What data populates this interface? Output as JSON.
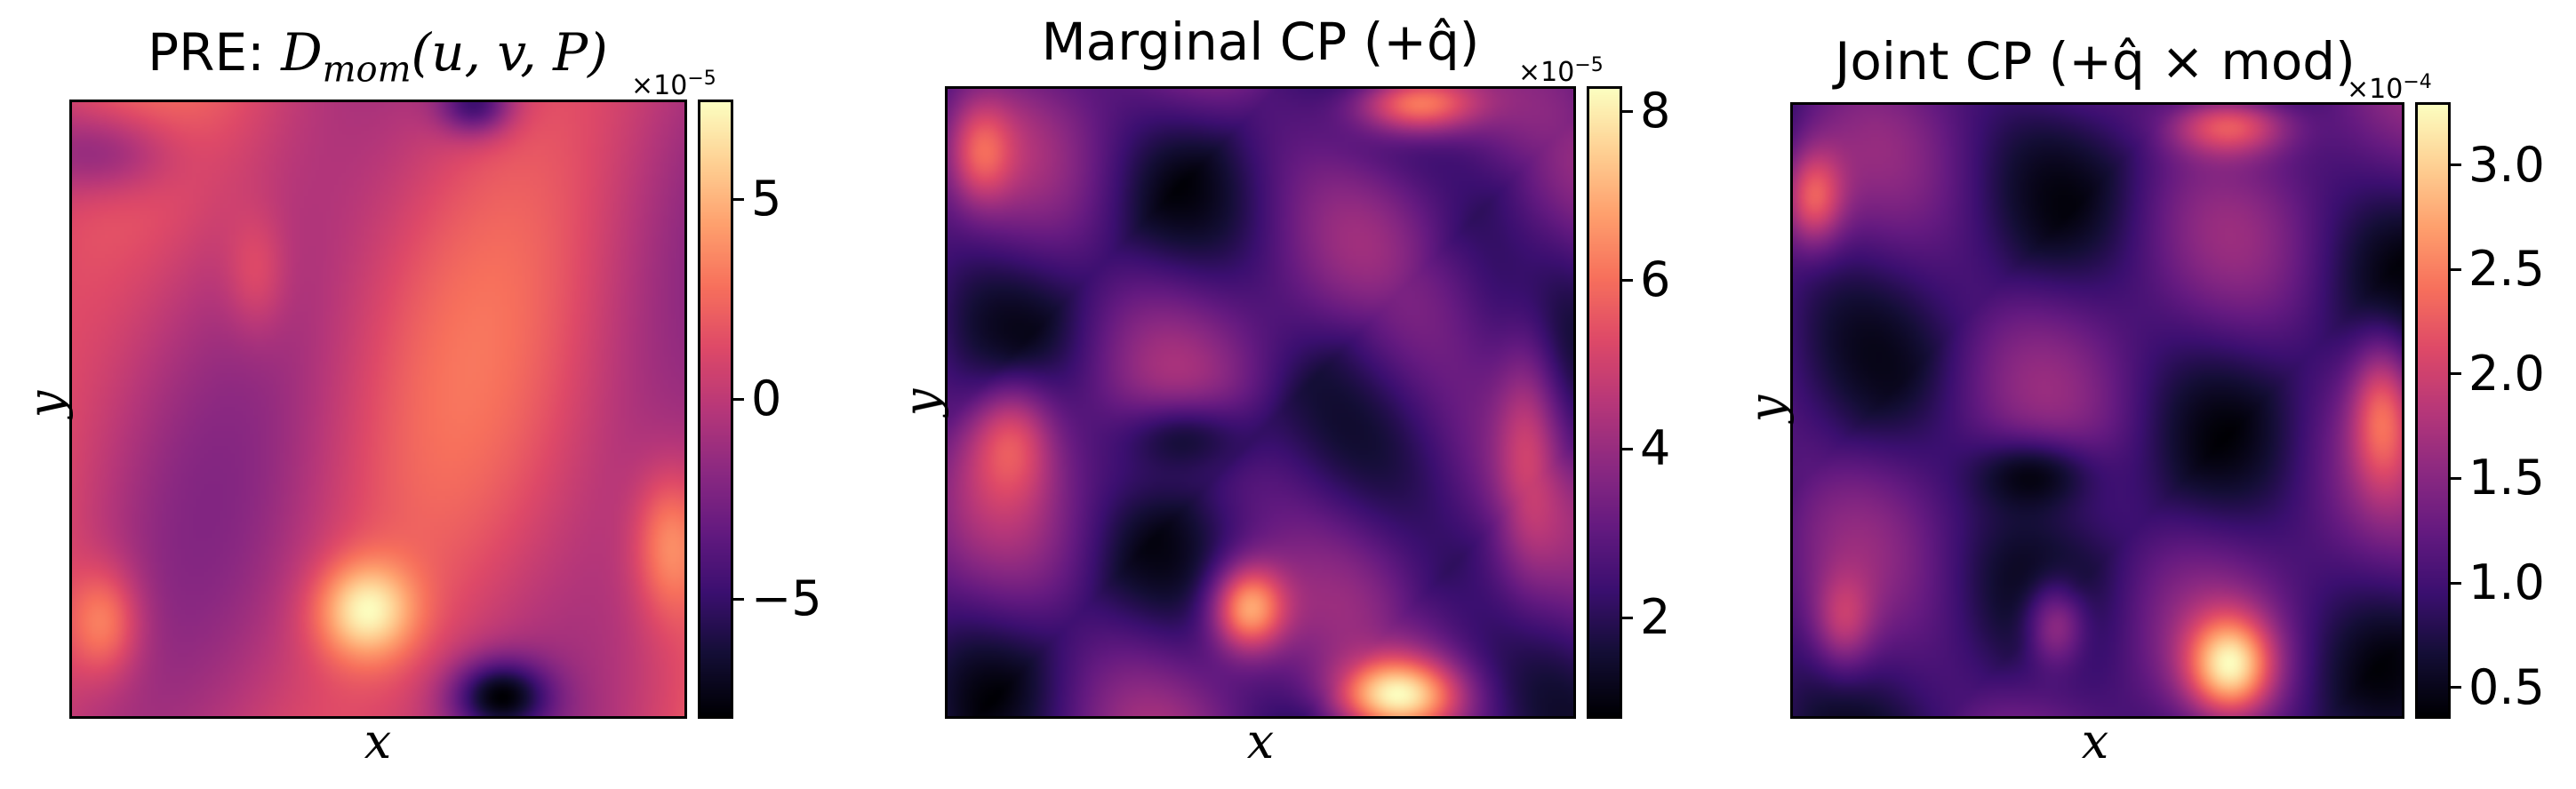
{
  "chart_data": [
    {
      "type": "heatmap",
      "title": "PRE: D_mom(u, v, P)",
      "title_parts": {
        "prefix": "PRE: ",
        "symbol": "D",
        "subscript": "mom",
        "args": "(u, v, P)"
      },
      "xlabel": "x",
      "ylabel": "y",
      "colormap": "magma",
      "colorbar": {
        "multiplier": "×10",
        "exponent": "−5",
        "range": [
          -8,
          7.5
        ],
        "ticks": [
          5,
          0,
          -5
        ],
        "tick_labels": [
          "5",
          "0",
          "−5"
        ]
      },
      "field_description": "smooth wavy field; bright spots lower-left and lower-center, dark spot bottom-center"
    },
    {
      "type": "heatmap",
      "title": "Marginal CP (+q̂)",
      "xlabel": "x",
      "ylabel": "y",
      "colormap": "magma",
      "colorbar": {
        "multiplier": "×10",
        "exponent": "−5",
        "range": [
          0.8,
          8.3
        ],
        "ticks": [
          8,
          6,
          4,
          2
        ],
        "tick_labels": [
          "8",
          "6",
          "4",
          "2"
        ]
      },
      "field_description": "filamentary field with dark streaks; bright spots bottom-center and top-center"
    },
    {
      "type": "heatmap",
      "title": "Joint CP (+q̂ × mod)",
      "xlabel": "x",
      "ylabel": "y",
      "colormap": "magma",
      "colorbar": {
        "multiplier": "×10",
        "exponent": "−4",
        "range": [
          0.35,
          3.3
        ],
        "ticks": [
          3.0,
          2.5,
          2.0,
          1.5,
          1.0,
          0.5
        ],
        "tick_labels": [
          "3.0",
          "2.5",
          "2.0",
          "1.5",
          "1.0",
          "0.5"
        ]
      },
      "field_description": "filamentary field similar to marginal; bright spot bottom-center"
    }
  ],
  "colors": {
    "magma_low": "#000004",
    "magma_mid": "#b5367a",
    "magma_high": "#fcfdbf",
    "frame": "#000000"
  }
}
